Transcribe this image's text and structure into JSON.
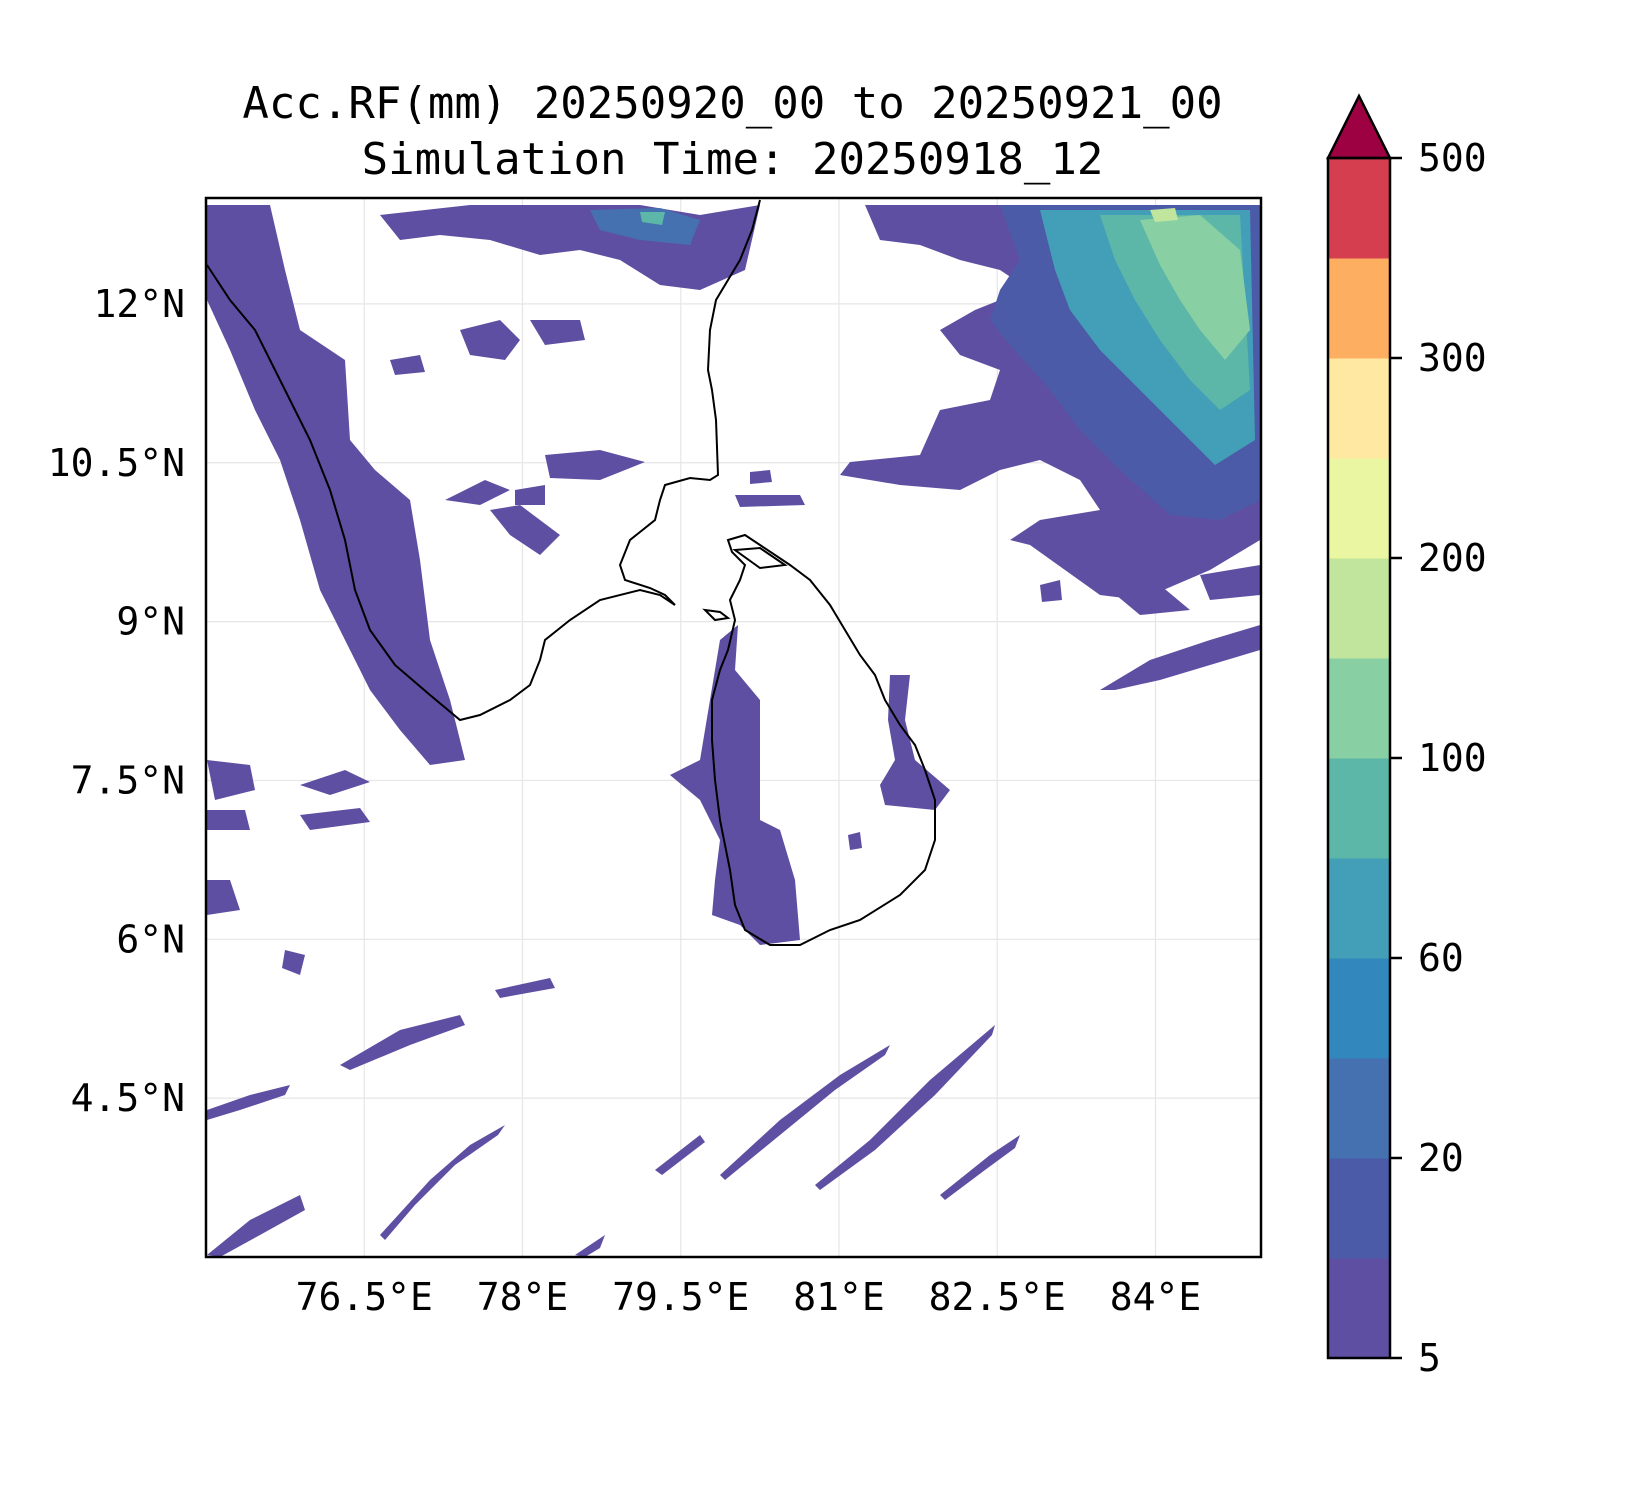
{
  "title": {
    "line1": "Acc.RF(mm) 20250920_00 to 20250921_00",
    "line2": "Simulation Time: 20250918_12"
  },
  "map": {
    "type": "contourf",
    "lon_range": [
      75.0,
      85.0
    ],
    "lat_range": [
      3.0,
      13.0
    ],
    "gridlines": true,
    "lon_ticks": [
      {
        "value": 76.5,
        "label": "76.5°E"
      },
      {
        "value": 78.0,
        "label": "78°E"
      },
      {
        "value": 79.5,
        "label": "79.5°E"
      },
      {
        "value": 81.0,
        "label": "81°E"
      },
      {
        "value": 82.5,
        "label": "82.5°E"
      },
      {
        "value": 84.0,
        "label": "84°E"
      }
    ],
    "lat_ticks": [
      {
        "value": 12.0,
        "label": "12°N"
      },
      {
        "value": 10.5,
        "label": "10.5°N"
      },
      {
        "value": 9.0,
        "label": "9°N"
      },
      {
        "value": 7.5,
        "label": "7.5°N"
      },
      {
        "value": 6.0,
        "label": "6°N"
      },
      {
        "value": 4.5,
        "label": "4.5°N"
      }
    ]
  },
  "colorbar": {
    "extend": "max",
    "colors": [
      "#5e4fa2",
      "#4c5ba8",
      "#4671b0",
      "#3288bd",
      "#439fb7",
      "#5cb7a8",
      "#88cfa4",
      "#c2e59e",
      "#ebf6a2",
      "#fee8a2",
      "#fdae61",
      "#d53e4f",
      "#9e0142"
    ],
    "tick_labels": [
      {
        "index": 0,
        "label": "5"
      },
      {
        "index": 2,
        "label": "20"
      },
      {
        "index": 4,
        "label": "60"
      },
      {
        "index": 6,
        "label": "100"
      },
      {
        "index": 8,
        "label": "200"
      },
      {
        "index": 10,
        "label": "300"
      },
      {
        "index": 12,
        "label": "500"
      }
    ]
  }
}
